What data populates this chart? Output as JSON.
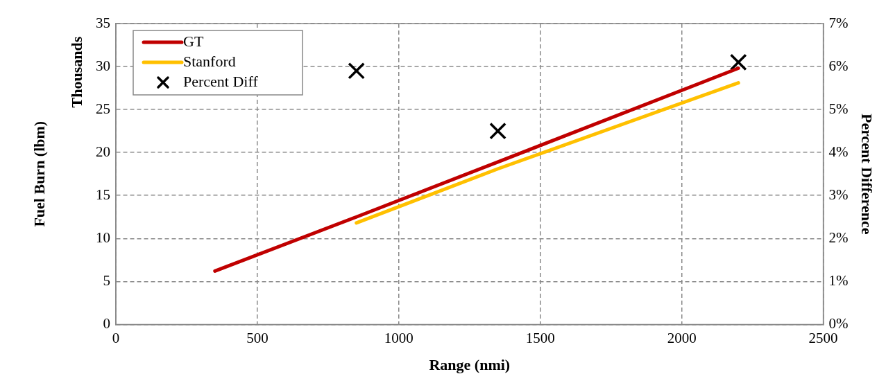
{
  "chart_data": {
    "type": "line",
    "xlabel": "Range (nmi)",
    "ylabel": "Fuel Burn (lbm)",
    "y2label": "Percent Difference",
    "annotations": [
      "Thousands"
    ],
    "series": [
      {
        "name": "GT",
        "color": "#c00000",
        "x": [
          350,
          850,
          1350,
          2200
        ],
        "values": [
          6.2,
          12.5,
          18.9,
          29.8
        ]
      },
      {
        "name": "Stanford",
        "color": "#ffc000",
        "x": [
          850,
          1350,
          2200
        ],
        "values": [
          11.8,
          18.1,
          28.1
        ]
      },
      {
        "name": "Percent Diff",
        "type": "scatter",
        "color": "#000000",
        "axis": "y2",
        "marker": "cross",
        "x": [
          850,
          1350,
          2200
        ],
        "values": [
          5.9,
          4.5,
          6.1
        ]
      }
    ],
    "xlim": [
      0,
      2500
    ],
    "xticks": [
      0,
      500,
      1000,
      1500,
      2000,
      2500
    ],
    "ylim": [
      0,
      35
    ],
    "yticks": [
      0,
      5,
      10,
      15,
      20,
      25,
      30,
      35
    ],
    "y2lim": [
      0,
      7
    ],
    "y2ticks": [
      {
        "value": 0,
        "label": "0%"
      },
      {
        "value": 1,
        "label": "1%"
      },
      {
        "value": 2,
        "label": "2%"
      },
      {
        "value": 3,
        "label": "3%"
      },
      {
        "value": 4,
        "label": "4%"
      },
      {
        "value": 5,
        "label": "5%"
      },
      {
        "value": 6,
        "label": "6%"
      },
      {
        "value": 7,
        "label": "7%"
      }
    ],
    "grid": true,
    "legend": "top left",
    "marker": "none",
    "line_style": "solid"
  }
}
